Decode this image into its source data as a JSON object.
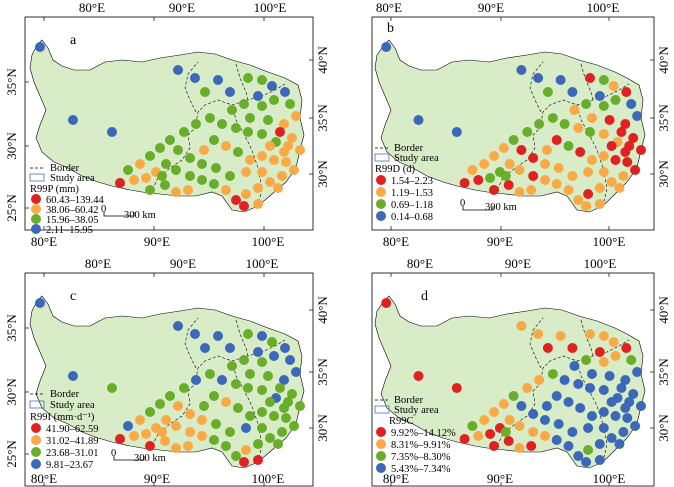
{
  "colors": {
    "red": "#e02121",
    "orange": "#f9a946",
    "green": "#68ae2a",
    "blue": "#3b68b9",
    "land": "#d8ecc8"
  },
  "axis_labels": {
    "lon_80": "80°E",
    "lon_90": "90°E",
    "lon_100": "100°E",
    "lat_25": "25°N",
    "lat_30": "30°N",
    "lat_35": "35°N",
    "lat_40": "40°N"
  },
  "legend_common": {
    "border": "Border",
    "study_area": "Study area",
    "scale": "300 km",
    "scale_zero": "0"
  },
  "panels": [
    {
      "id": "a",
      "letter": "a",
      "legend_title": "R99P (mm)",
      "classes": [
        {
          "color": "red",
          "label": "60.43–139.44"
        },
        {
          "color": "orange",
          "label": "38.06–60.42"
        },
        {
          "color": "green",
          "label": "15.96–38.05"
        },
        {
          "color": "blue",
          "label": "2.11–15.95"
        }
      ]
    },
    {
      "id": "b",
      "letter": "b",
      "legend_title": "R99D (d)",
      "classes": [
        {
          "color": "red",
          "label": "1.54–2.23"
        },
        {
          "color": "orange",
          "label": "1.19–1.53"
        },
        {
          "color": "green",
          "label": "0.69–1.18"
        },
        {
          "color": "blue",
          "label": "0.14–0.68"
        }
      ]
    },
    {
      "id": "c",
      "letter": "c",
      "legend_title": "R99I (mm·d⁻¹)",
      "classes": [
        {
          "color": "red",
          "label": "41.90–62.59"
        },
        {
          "color": "orange",
          "label": "31.02–41.89"
        },
        {
          "color": "green",
          "label": "23.68–31.01"
        },
        {
          "color": "blue",
          "label": "9.81–23.67"
        }
      ]
    },
    {
      "id": "d",
      "letter": "d",
      "legend_title": "R99C",
      "classes": [
        {
          "color": "red",
          "label": "9.92%–14.12%"
        },
        {
          "color": "orange",
          "label": "8.31%–9.91%"
        },
        {
          "color": "green",
          "label": "7.35%–8.30%"
        },
        {
          "color": "blue",
          "label": "5.43%–7.34%"
        }
      ]
    }
  ]
}
